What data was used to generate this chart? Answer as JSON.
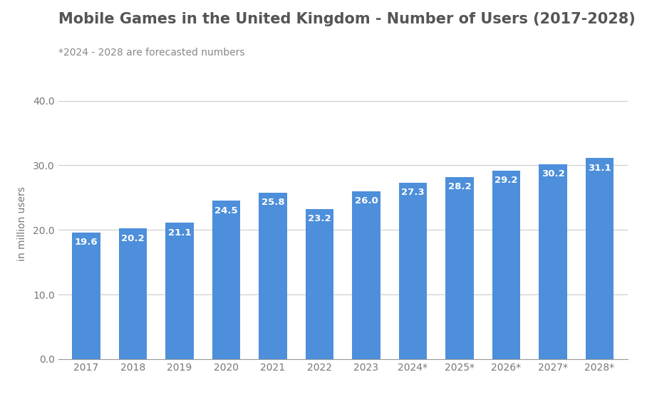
{
  "title": "Mobile Games in the United Kingdom - Number of Users (2017-2028)",
  "subtitle": "*2024 - 2028 are forecasted numbers",
  "ylabel": "in million users",
  "categories": [
    "2017",
    "2018",
    "2019",
    "2020",
    "2021",
    "2022",
    "2023",
    "2024*",
    "2025*",
    "2026*",
    "2027*",
    "2028*"
  ],
  "values": [
    19.6,
    20.2,
    21.1,
    24.5,
    25.8,
    23.2,
    26.0,
    27.3,
    28.2,
    29.2,
    30.2,
    31.1
  ],
  "bar_color": "#4d8fdb",
  "ylim": [
    0,
    42
  ],
  "yticks": [
    0.0,
    10.0,
    20.0,
    30.0,
    40.0
  ],
  "background_color": "#ffffff",
  "title_fontsize": 15,
  "subtitle_fontsize": 10,
  "tick_fontsize": 10,
  "ylabel_fontsize": 10,
  "bar_label_color": "#ffffff",
  "bar_label_fontsize": 9.5,
  "grid_color": "#cccccc",
  "title_color": "#555555",
  "subtitle_color": "#888888",
  "tick_color": "#777777",
  "axis_color": "#999999"
}
